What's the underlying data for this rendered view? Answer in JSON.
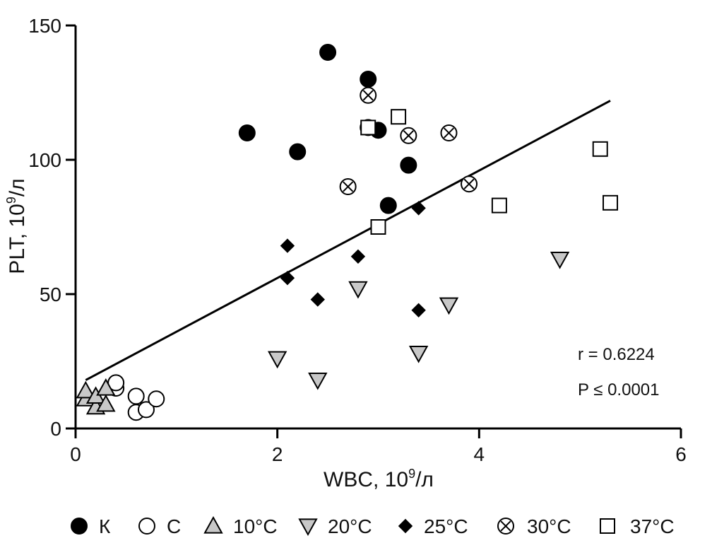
{
  "chart_data": {
    "type": "scatter",
    "xlabel": "WBC, 10",
    "xlabel_sup": "9",
    "xlabel_unit": "/л",
    "ylabel": "PLT, 10",
    "ylabel_sup": "9",
    "ylabel_unit": "/л",
    "xlim": [
      0,
      6
    ],
    "ylim": [
      0,
      150
    ],
    "x_ticks": [
      "0",
      "2",
      "4",
      "6"
    ],
    "y_ticks": [
      "0",
      "50",
      "100",
      "150"
    ],
    "x_tick_values": [
      0,
      2,
      4,
      6
    ],
    "y_tick_values": [
      0,
      50,
      100,
      150
    ],
    "grid": false,
    "legend_position": "bottom",
    "regression_line": {
      "x": [
        0.1,
        5.3
      ],
      "y": [
        18,
        122
      ]
    },
    "annotations": [
      "r = 0.6224",
      "P ≤ 0.0001"
    ],
    "series": [
      {
        "name": "К",
        "marker": "circle-filled",
        "points": [
          [
            1.7,
            110
          ],
          [
            2.2,
            103
          ],
          [
            2.5,
            140
          ],
          [
            2.9,
            130
          ],
          [
            3.0,
            111
          ],
          [
            3.1,
            83
          ],
          [
            3.3,
            98
          ]
        ]
      },
      {
        "name": "С",
        "marker": "circle-open",
        "points": [
          [
            0.4,
            15
          ],
          [
            0.4,
            17
          ],
          [
            0.6,
            12
          ],
          [
            0.6,
            6
          ],
          [
            0.7,
            7
          ],
          [
            0.8,
            11
          ]
        ]
      },
      {
        "name": "10°C",
        "marker": "triangle-up-gray",
        "points": [
          [
            0.1,
            11
          ],
          [
            0.1,
            14
          ],
          [
            0.2,
            8
          ],
          [
            0.2,
            12
          ],
          [
            0.3,
            15
          ],
          [
            0.3,
            9
          ]
        ]
      },
      {
        "name": "20°C",
        "marker": "triangle-down-gray",
        "points": [
          [
            2.0,
            26
          ],
          [
            2.4,
            18
          ],
          [
            2.8,
            52
          ],
          [
            3.4,
            28
          ],
          [
            3.7,
            46
          ],
          [
            4.8,
            63
          ]
        ]
      },
      {
        "name": "25°C",
        "marker": "diamond-filled",
        "points": [
          [
            2.1,
            68
          ],
          [
            2.1,
            56
          ],
          [
            2.4,
            48
          ],
          [
            2.8,
            64
          ],
          [
            3.4,
            82
          ],
          [
            3.4,
            44
          ]
        ]
      },
      {
        "name": "30°C",
        "marker": "circle-x",
        "points": [
          [
            2.7,
            90
          ],
          [
            2.9,
            124
          ],
          [
            2.9,
            112
          ],
          [
            3.3,
            109
          ],
          [
            3.7,
            110
          ],
          [
            3.9,
            91
          ]
        ]
      },
      {
        "name": "37°C",
        "marker": "square-open",
        "points": [
          [
            2.9,
            112
          ],
          [
            3.0,
            75
          ],
          [
            3.2,
            116
          ],
          [
            4.2,
            83
          ],
          [
            5.2,
            104
          ],
          [
            5.3,
            84
          ]
        ]
      }
    ]
  }
}
